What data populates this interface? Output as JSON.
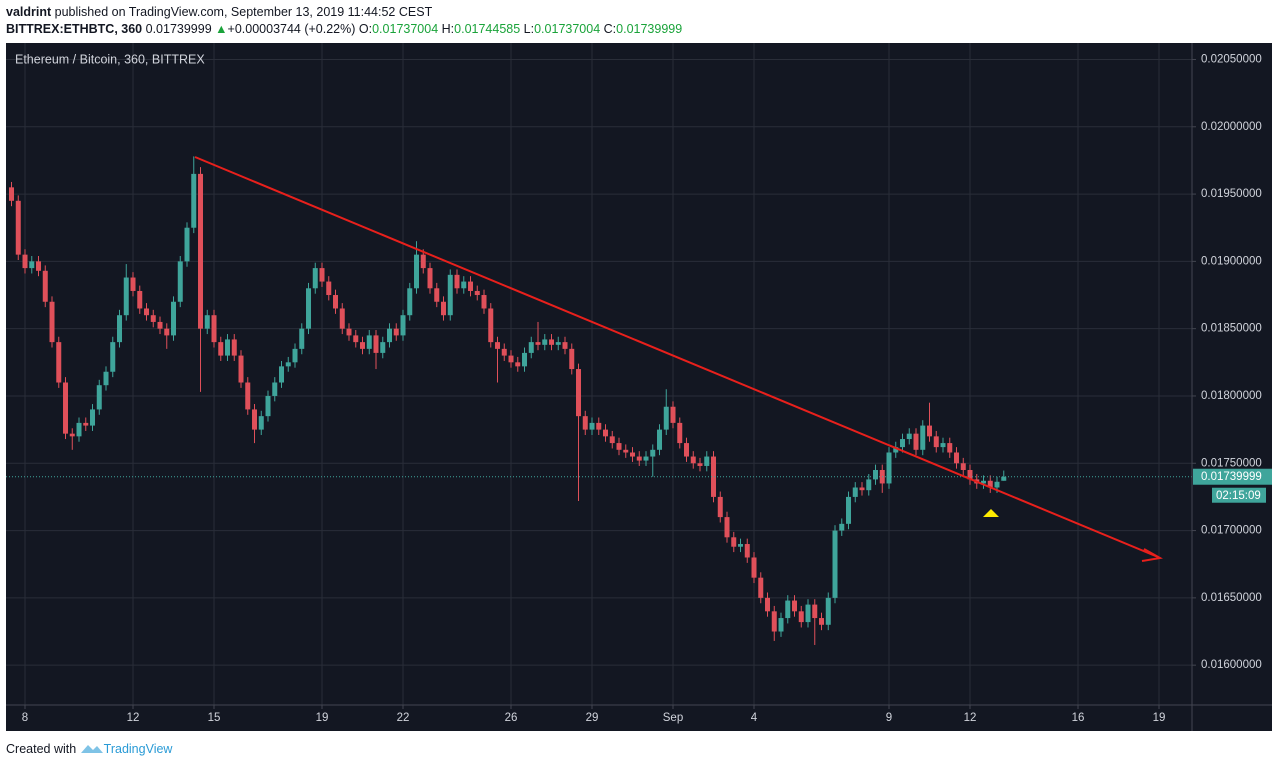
{
  "header": {
    "author": "valdrint",
    "published": "published on TradingView.com, September 13, 2019 11:44:52 CEST",
    "symbol": "BITTREX:ETHBTC, 360",
    "change": "+0.00003744 (+0.22%)",
    "ohlc_labels": [
      "O:",
      "H:",
      "L:",
      "C:"
    ]
  },
  "footer": {
    "created_with": "Created with",
    "brand": "TradingView"
  },
  "chart_data": {
    "type": "candlestick",
    "title": "Ethereum / Bitcoin, 360, BITTREX",
    "up_color": "#3fa59b",
    "down_color": "#e0505a",
    "grid": true,
    "countdown": "02:15:09",
    "xlim": [
      7.333,
      51.222
    ],
    "xticks": [
      8,
      12,
      15,
      19,
      22,
      26,
      29,
      {
        "value": 32,
        "label": "Sep"
      },
      {
        "value": 35,
        "label": "4"
      },
      {
        "value": 40,
        "label": "9"
      },
      {
        "value": 43,
        "label": "12"
      },
      {
        "value": 47,
        "label": "16"
      },
      {
        "value": 50,
        "label": "19"
      }
    ],
    "ylim": [
      0.015704,
      0.020615
    ],
    "yticks": [
      {
        "value": 0.016,
        "label": "0.01600000"
      },
      {
        "value": 0.0165,
        "label": "0.01650000"
      },
      {
        "value": 0.017,
        "label": "0.01700000"
      },
      {
        "value": 0.0175,
        "label": "0.01750000"
      },
      {
        "value": 0.018,
        "label": "0.01800000"
      },
      {
        "value": 0.0185,
        "label": "0.01850000"
      },
      {
        "value": 0.019,
        "label": "0.01900000"
      },
      {
        "value": 0.0195,
        "label": "0.01950000"
      },
      {
        "value": 0.02,
        "label": "0.02000000"
      },
      {
        "value": 0.0205,
        "label": "0.02050000"
      }
    ],
    "x": [
      7.5,
      7.75,
      8,
      8.25,
      8.5,
      8.75,
      9,
      9.25,
      9.5,
      9.75,
      10,
      10.25,
      10.5,
      10.75,
      11,
      11.25,
      11.5,
      11.75,
      12,
      12.25,
      12.5,
      12.75,
      13,
      13.25,
      13.5,
      13.75,
      14,
      14.25,
      14.5,
      14.75,
      15,
      15.25,
      15.5,
      15.75,
      16,
      16.25,
      16.5,
      16.75,
      17,
      17.25,
      17.5,
      17.75,
      18,
      18.25,
      18.5,
      18.75,
      19,
      19.25,
      19.5,
      19.75,
      20,
      20.25,
      20.5,
      20.75,
      21,
      21.25,
      21.5,
      21.75,
      22,
      22.25,
      22.5,
      22.75,
      23,
      23.25,
      23.5,
      23.75,
      24,
      24.25,
      24.5,
      24.75,
      25,
      25.25,
      25.5,
      25.75,
      26,
      26.25,
      26.5,
      26.75,
      27,
      27.25,
      27.5,
      27.75,
      28,
      28.25,
      28.5,
      28.75,
      29,
      29.25,
      29.5,
      29.75,
      30,
      30.25,
      30.5,
      30.75,
      31,
      31.25,
      31.5,
      31.75,
      32,
      32.25,
      32.5,
      32.75,
      33,
      33.25,
      33.5,
      33.75,
      34,
      34.25,
      34.5,
      34.75,
      35,
      35.25,
      35.5,
      35.75,
      36,
      36.25,
      36.5,
      36.75,
      37,
      37.25,
      37.5,
      37.75,
      38,
      38.25,
      38.5,
      38.75,
      39,
      39.25,
      39.5,
      39.75,
      40,
      40.25,
      40.5,
      40.75,
      41,
      41.25,
      41.5,
      41.75,
      42,
      42.25,
      42.5,
      42.75,
      43,
      43.25,
      43.5,
      43.75,
      44,
      44.25
    ],
    "open": [
      0.01955,
      0.01945,
      0.01905,
      0.01895,
      0.019,
      0.01893,
      0.0187,
      0.0184,
      0.0181,
      0.01772,
      0.0177,
      0.0178,
      0.01778,
      0.0179,
      0.01808,
      0.01818,
      0.0184,
      0.0186,
      0.01888,
      0.01878,
      0.01865,
      0.0186,
      0.01855,
      0.0185,
      0.01845,
      0.0187,
      0.019,
      0.01925,
      0.01965,
      0.0185,
      0.0186,
      0.0184,
      0.0183,
      0.01842,
      0.0183,
      0.0181,
      0.0179,
      0.01775,
      0.01785,
      0.018,
      0.0181,
      0.01822,
      0.01825,
      0.01835,
      0.0185,
      0.0188,
      0.01895,
      0.01885,
      0.01875,
      0.01865,
      0.0185,
      0.01845,
      0.0184,
      0.01835,
      0.01845,
      0.01832,
      0.0184,
      0.0185,
      0.01845,
      0.0186,
      0.0188,
      0.01905,
      0.01895,
      0.0188,
      0.0187,
      0.0186,
      0.0189,
      0.0188,
      0.01885,
      0.01878,
      0.01875,
      0.01865,
      0.0184,
      0.01835,
      0.0183,
      0.01825,
      0.01822,
      0.01832,
      0.0184,
      0.01838,
      0.01842,
      0.01838,
      0.0184,
      0.01835,
      0.0182,
      0.01785,
      0.01775,
      0.0178,
      0.01775,
      0.0177,
      0.01765,
      0.0176,
      0.01758,
      0.01755,
      0.01752,
      0.01755,
      0.0176,
      0.01775,
      0.01792,
      0.0178,
      0.01765,
      0.01755,
      0.0175,
      0.01748,
      0.01755,
      0.01725,
      0.0171,
      0.01695,
      0.01688,
      0.0169,
      0.0168,
      0.01665,
      0.0165,
      0.0164,
      0.01625,
      0.01635,
      0.01648,
      0.0164,
      0.01632,
      0.01645,
      0.01635,
      0.0163,
      0.0165,
      0.017,
      0.01705,
      0.01725,
      0.01732,
      0.0173,
      0.01738,
      0.01745,
      0.01735,
      0.01758,
      0.01762,
      0.01768,
      0.01772,
      0.0176,
      0.01778,
      0.0177,
      0.01762,
      0.01765,
      0.01758,
      0.0175,
      0.01745,
      0.01738,
      0.01735,
      0.01737,
      0.01732,
      0.01737004
    ],
    "high": [
      0.01959,
      0.01949,
      0.01909,
      0.01904,
      0.01904,
      0.01897,
      0.01874,
      0.01844,
      0.01814,
      0.01776,
      0.01784,
      0.01784,
      0.01794,
      0.01812,
      0.01822,
      0.01844,
      0.01864,
      0.01898,
      0.01892,
      0.01882,
      0.01869,
      0.01864,
      0.01859,
      0.01854,
      0.01874,
      0.01904,
      0.01929,
      0.01978,
      0.0197,
      0.01864,
      0.01864,
      0.01844,
      0.01846,
      0.01846,
      0.01834,
      0.01814,
      0.01794,
      0.01789,
      0.01804,
      0.01814,
      0.01826,
      0.01829,
      0.01839,
      0.01854,
      0.01884,
      0.01899,
      0.01899,
      0.01889,
      0.01879,
      0.01869,
      0.01854,
      0.01849,
      0.01844,
      0.01849,
      0.01849,
      0.01844,
      0.01854,
      0.01854,
      0.01864,
      0.01884,
      0.01915,
      0.01909,
      0.01899,
      0.01884,
      0.01874,
      0.01894,
      0.01894,
      0.01889,
      0.01889,
      0.01882,
      0.01879,
      0.01869,
      0.01844,
      0.01839,
      0.01834,
      0.01829,
      0.01836,
      0.01844,
      0.01855,
      0.01846,
      0.01846,
      0.01844,
      0.01844,
      0.01839,
      0.01824,
      0.01789,
      0.01784,
      0.01784,
      0.01779,
      0.01774,
      0.01769,
      0.01764,
      0.01762,
      0.01759,
      0.01759,
      0.01764,
      0.01779,
      0.01805,
      0.01796,
      0.01784,
      0.01769,
      0.01759,
      0.01754,
      0.01759,
      0.01759,
      0.01729,
      0.01714,
      0.01699,
      0.01694,
      0.01694,
      0.01684,
      0.01669,
      0.01654,
      0.01644,
      0.01639,
      0.01652,
      0.01652,
      0.01644,
      0.01649,
      0.01649,
      0.01639,
      0.01654,
      0.01704,
      0.01709,
      0.01729,
      0.01736,
      0.01736,
      0.01742,
      0.01749,
      0.01749,
      0.01762,
      0.01766,
      0.01772,
      0.01776,
      0.01776,
      0.01782,
      0.01795,
      0.01774,
      0.01769,
      0.01769,
      0.01762,
      0.01754,
      0.01749,
      0.01742,
      0.01741,
      0.01741,
      0.0174,
      0.01744585
    ],
    "low": [
      0.01941,
      0.01901,
      0.01891,
      0.01891,
      0.01889,
      0.01866,
      0.01836,
      0.01806,
      0.01768,
      0.0176,
      0.01766,
      0.01774,
      0.01774,
      0.01786,
      0.01804,
      0.01814,
      0.01836,
      0.01856,
      0.01874,
      0.01861,
      0.01856,
      0.01851,
      0.01846,
      0.01835,
      0.01841,
      0.01866,
      0.01896,
      0.01921,
      0.01803,
      0.01846,
      0.01836,
      0.01826,
      0.01826,
      0.01826,
      0.01806,
      0.01786,
      0.01765,
      0.01771,
      0.01781,
      0.01796,
      0.01806,
      0.01818,
      0.01821,
      0.01831,
      0.01846,
      0.01876,
      0.01881,
      0.01871,
      0.01861,
      0.01846,
      0.01841,
      0.01836,
      0.01831,
      0.01831,
      0.0182,
      0.01828,
      0.01836,
      0.01841,
      0.01841,
      0.01856,
      0.01876,
      0.01891,
      0.01876,
      0.01866,
      0.01856,
      0.01856,
      0.01876,
      0.01876,
      0.01874,
      0.01871,
      0.01861,
      0.01836,
      0.0181,
      0.01826,
      0.01821,
      0.01818,
      0.01818,
      0.01828,
      0.01834,
      0.01834,
      0.01834,
      0.01834,
      0.01831,
      0.01816,
      0.01722,
      0.01771,
      0.01771,
      0.01771,
      0.01766,
      0.01761,
      0.01756,
      0.01754,
      0.01751,
      0.01748,
      0.01748,
      0.0174,
      0.01756,
      0.01771,
      0.01776,
      0.01761,
      0.01751,
      0.01746,
      0.01744,
      0.01744,
      0.01721,
      0.01706,
      0.01691,
      0.01684,
      0.01684,
      0.01676,
      0.01661,
      0.01646,
      0.01636,
      0.01618,
      0.01621,
      0.01631,
      0.01636,
      0.01628,
      0.01628,
      0.01615,
      0.01626,
      0.01626,
      0.01646,
      0.01696,
      0.01701,
      0.01721,
      0.01726,
      0.01726,
      0.01734,
      0.01728,
      0.01731,
      0.01754,
      0.01758,
      0.01764,
      0.01756,
      0.01756,
      0.01766,
      0.01758,
      0.01758,
      0.01754,
      0.01746,
      0.01741,
      0.01734,
      0.01731,
      0.01731,
      0.01728,
      0.01728,
      0.01737004
    ],
    "close": [
      0.01945,
      0.01905,
      0.01895,
      0.019,
      0.01893,
      0.0187,
      0.0184,
      0.0181,
      0.01772,
      0.0177,
      0.0178,
      0.01778,
      0.0179,
      0.01808,
      0.01818,
      0.0184,
      0.0186,
      0.01888,
      0.01878,
      0.01865,
      0.0186,
      0.01855,
      0.0185,
      0.01845,
      0.0187,
      0.019,
      0.01925,
      0.01965,
      0.0185,
      0.0186,
      0.0184,
      0.0183,
      0.01842,
      0.0183,
      0.0181,
      0.0179,
      0.01775,
      0.01785,
      0.018,
      0.0181,
      0.01822,
      0.01825,
      0.01835,
      0.0185,
      0.0188,
      0.01895,
      0.01885,
      0.01875,
      0.01865,
      0.0185,
      0.01845,
      0.0184,
      0.01835,
      0.01845,
      0.01832,
      0.0184,
      0.0185,
      0.01845,
      0.0186,
      0.0188,
      0.01905,
      0.01895,
      0.0188,
      0.0187,
      0.0186,
      0.0189,
      0.0188,
      0.01885,
      0.01878,
      0.01875,
      0.01865,
      0.0184,
      0.01835,
      0.0183,
      0.01825,
      0.01822,
      0.01832,
      0.0184,
      0.01838,
      0.01842,
      0.01838,
      0.0184,
      0.01835,
      0.0182,
      0.01785,
      0.01775,
      0.0178,
      0.01775,
      0.0177,
      0.01765,
      0.0176,
      0.01758,
      0.01755,
      0.01752,
      0.01755,
      0.0176,
      0.01775,
      0.01792,
      0.0178,
      0.01765,
      0.01755,
      0.0175,
      0.01748,
      0.01755,
      0.01725,
      0.0171,
      0.01695,
      0.01688,
      0.0169,
      0.0168,
      0.01665,
      0.0165,
      0.0164,
      0.01625,
      0.01635,
      0.01648,
      0.0164,
      0.01632,
      0.01645,
      0.01635,
      0.0163,
      0.0165,
      0.017,
      0.01705,
      0.01725,
      0.01732,
      0.0173,
      0.01738,
      0.01745,
      0.01735,
      0.01758,
      0.01762,
      0.01768,
      0.01772,
      0.0176,
      0.01778,
      0.0177,
      0.01762,
      0.01765,
      0.01758,
      0.0175,
      0.01745,
      0.01738,
      0.01735,
      0.01737,
      0.01732,
      0.01736255,
      0.01739999
    ]
  }
}
